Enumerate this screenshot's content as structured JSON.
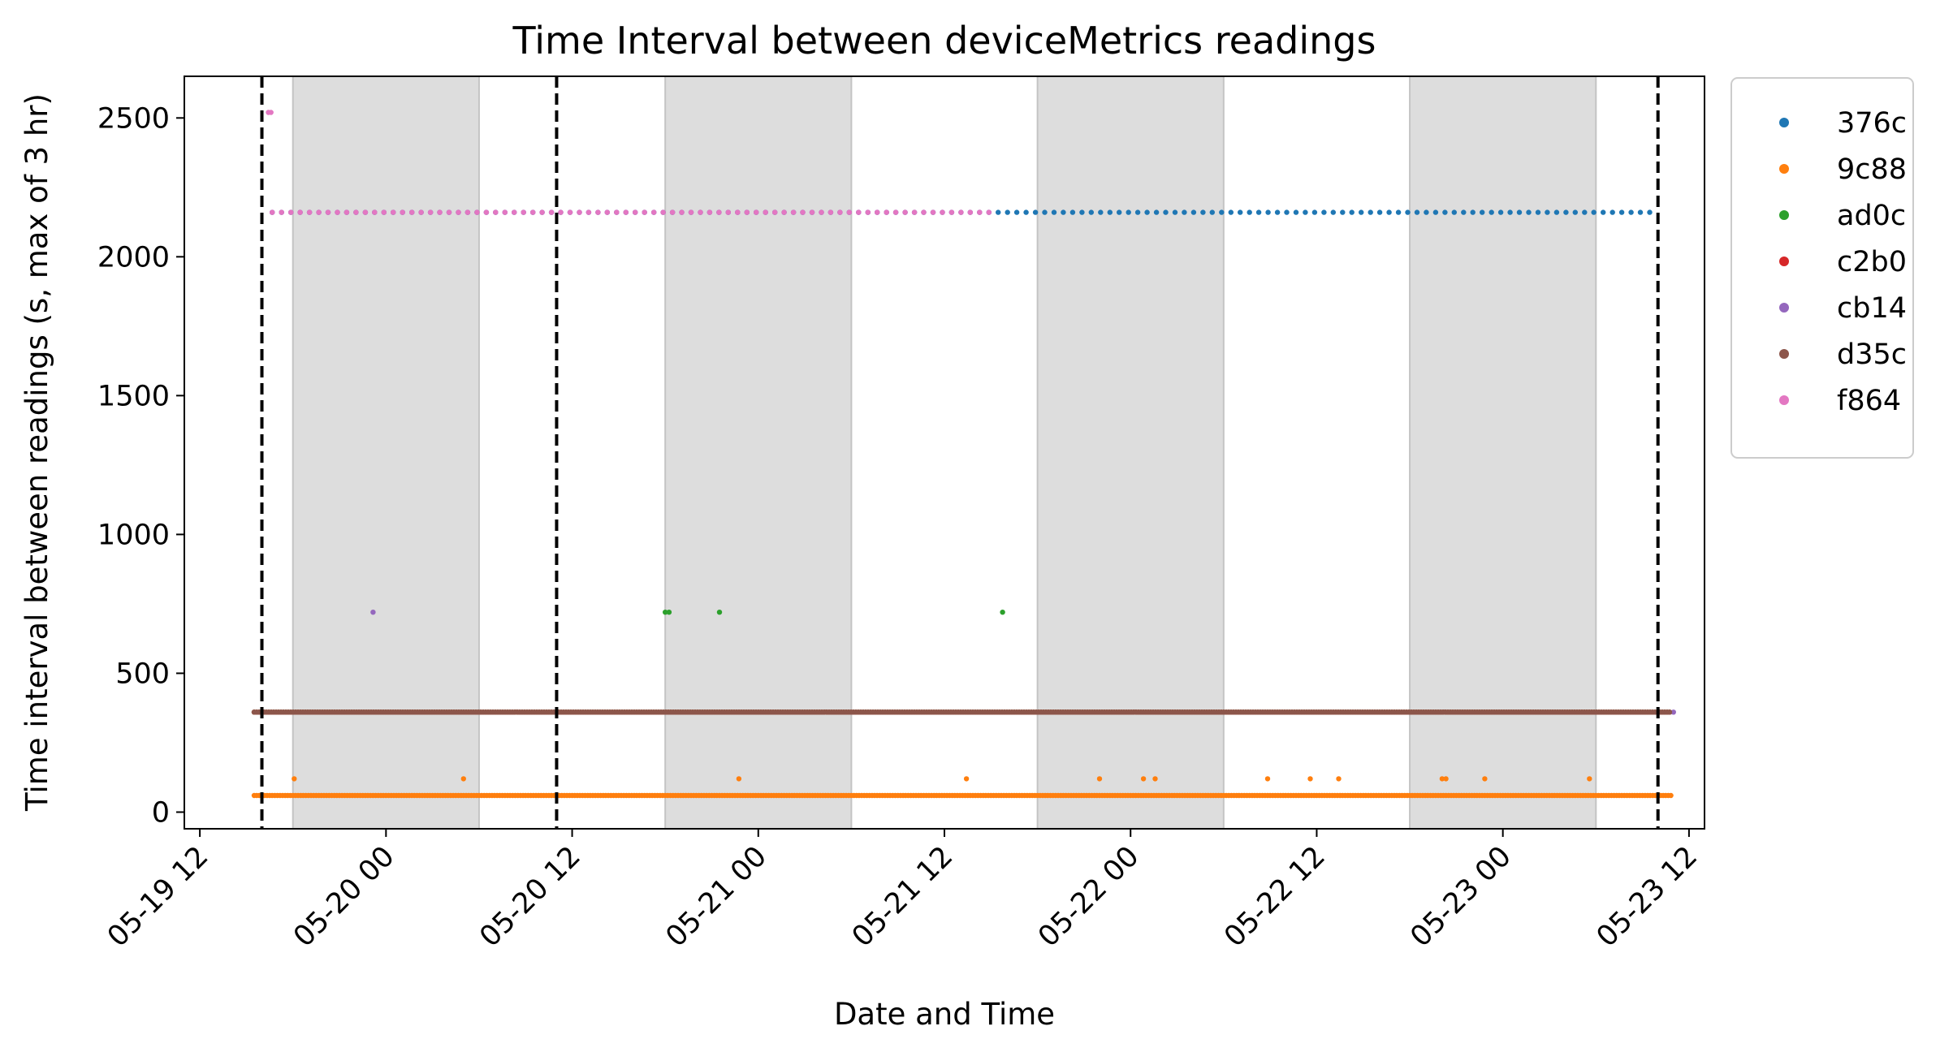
{
  "chart_data": {
    "type": "scatter",
    "title": "Time Interval between deviceMetrics readings",
    "xlabel": "Date and Time",
    "ylabel": "Time interval between readings (s, max of 3 hr)",
    "x_axis_type": "datetime",
    "xlim": [
      "2025-05-19T11:00",
      "2025-05-23T13:00"
    ],
    "ylim": [
      -60,
      2650
    ],
    "x_ticks": [
      "2025-05-19T12:00",
      "2025-05-20T00:00",
      "2025-05-20T12:00",
      "2025-05-21T00:00",
      "2025-05-21T12:00",
      "2025-05-22T00:00",
      "2025-05-22T12:00",
      "2025-05-23T00:00",
      "2025-05-23T12:00"
    ],
    "x_tick_labels": [
      "05-19 12",
      "05-20 00",
      "05-20 12",
      "05-21 00",
      "05-21 12",
      "05-22 00",
      "05-22 12",
      "05-23 00",
      "05-23 12"
    ],
    "y_ticks": [
      0,
      500,
      1000,
      1500,
      2000,
      2500
    ],
    "y_tick_labels": [
      "0",
      "500",
      "1000",
      "1500",
      "2000",
      "2500"
    ],
    "grid": false,
    "legend_position": "outside-right",
    "night_bands": [
      [
        "2025-05-19T18:00",
        "2025-05-20T06:00"
      ],
      [
        "2025-05-20T18:00",
        "2025-05-21T06:00"
      ],
      [
        "2025-05-21T18:00",
        "2025-05-22T06:00"
      ],
      [
        "2025-05-22T18:00",
        "2025-05-23T06:00"
      ]
    ],
    "vertical_lines": [
      "2025-05-19T16:00",
      "2025-05-20T11:00",
      "2025-05-23T10:00"
    ],
    "series": [
      {
        "name": "376c",
        "color": "#1f77b4",
        "pattern": {
          "start": "2025-05-19T16:40",
          "end": "2025-05-23T10:00",
          "step_minutes": 36,
          "value": 2160
        }
      },
      {
        "name": "9c88",
        "color": "#ff7f0e",
        "pattern": {
          "start": "2025-05-19T15:30",
          "end": "2025-05-23T10:50",
          "step_minutes": 10,
          "value": 60
        },
        "points": [
          {
            "x": "2025-05-19T18:05",
            "y": 120
          },
          {
            "x": "2025-05-20T05:00",
            "y": 120
          },
          {
            "x": "2025-05-20T22:45",
            "y": 120
          },
          {
            "x": "2025-05-21T13:25",
            "y": 120
          },
          {
            "x": "2025-05-21T22:00",
            "y": 120
          },
          {
            "x": "2025-05-22T00:50",
            "y": 120
          },
          {
            "x": "2025-05-22T01:35",
            "y": 120
          },
          {
            "x": "2025-05-22T08:50",
            "y": 120
          },
          {
            "x": "2025-05-22T11:35",
            "y": 120
          },
          {
            "x": "2025-05-22T13:25",
            "y": 120
          },
          {
            "x": "2025-05-22T20:05",
            "y": 120
          },
          {
            "x": "2025-05-22T20:20",
            "y": 120
          },
          {
            "x": "2025-05-22T22:50",
            "y": 120
          },
          {
            "x": "2025-05-23T05:35",
            "y": 120
          }
        ]
      },
      {
        "name": "ad0c",
        "color": "#2ca02c",
        "pattern": {
          "start": "2025-05-19T15:30",
          "end": "2025-05-23T10:50",
          "step_minutes": 6,
          "value": 360
        },
        "points": [
          {
            "x": "2025-05-20T18:00",
            "y": 720
          },
          {
            "x": "2025-05-20T18:15",
            "y": 720
          },
          {
            "x": "2025-05-20T21:30",
            "y": 720
          },
          {
            "x": "2025-05-21T15:45",
            "y": 720
          }
        ]
      },
      {
        "name": "c2b0",
        "color": "#d62728",
        "pattern": {
          "start": "2025-05-19T15:30",
          "end": "2025-05-23T10:50",
          "step_minutes": 6,
          "value": 360
        }
      },
      {
        "name": "cb14",
        "color": "#9467bd",
        "pattern": {
          "start": "2025-05-19T16:40",
          "end": "2025-05-21T15:00",
          "step_minutes": 36,
          "value": 2160
        },
        "points": [
          {
            "x": "2025-05-19T23:10",
            "y": 720
          },
          {
            "x": "2025-05-23T11:00",
            "y": 360
          }
        ]
      },
      {
        "name": "d35c",
        "color": "#8c564b",
        "pattern": {
          "start": "2025-05-19T15:30",
          "end": "2025-05-23T10:50",
          "step_minutes": 6,
          "value": 360
        }
      },
      {
        "name": "f864",
        "color": "#e377c2",
        "pattern": {
          "start": "2025-05-19T16:40",
          "end": "2025-05-21T15:00",
          "step_minutes": 36,
          "value": 2160
        },
        "points": [
          {
            "x": "2025-05-19T16:25",
            "y": 2520
          },
          {
            "x": "2025-05-19T16:35",
            "y": 2520
          }
        ]
      }
    ]
  }
}
